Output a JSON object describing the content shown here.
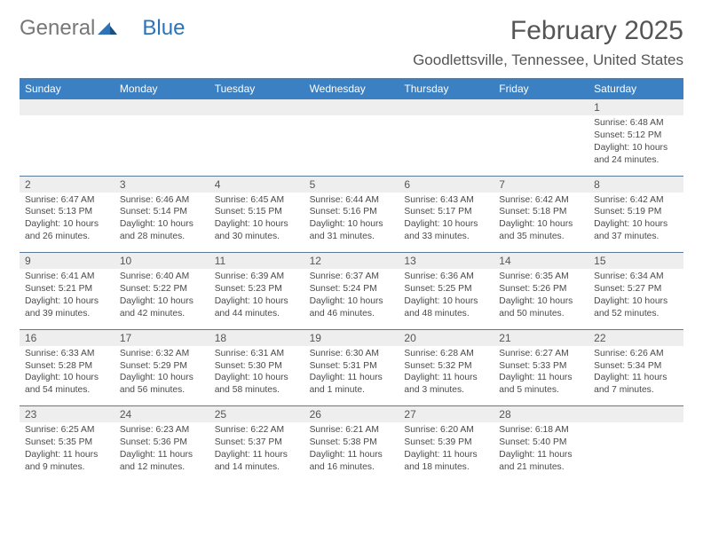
{
  "logo": {
    "general": "General",
    "blue": "Blue"
  },
  "title": "February 2025",
  "location": "Goodlettsville, Tennessee, United States",
  "colors": {
    "headerBar": "#3a80c2",
    "rule": "#5b7a99",
    "numRow": "#eeeeee"
  },
  "dayNames": [
    "Sunday",
    "Monday",
    "Tuesday",
    "Wednesday",
    "Thursday",
    "Friday",
    "Saturday"
  ],
  "weeks": [
    {
      "nums": [
        "",
        "",
        "",
        "",
        "",
        "",
        "1"
      ],
      "cells": [
        null,
        null,
        null,
        null,
        null,
        null,
        {
          "sunrise": "Sunrise: 6:48 AM",
          "sunset": "Sunset: 5:12 PM",
          "daylight": "Daylight: 10 hours and 24 minutes."
        }
      ]
    },
    {
      "nums": [
        "2",
        "3",
        "4",
        "5",
        "6",
        "7",
        "8"
      ],
      "cells": [
        {
          "sunrise": "Sunrise: 6:47 AM",
          "sunset": "Sunset: 5:13 PM",
          "daylight": "Daylight: 10 hours and 26 minutes."
        },
        {
          "sunrise": "Sunrise: 6:46 AM",
          "sunset": "Sunset: 5:14 PM",
          "daylight": "Daylight: 10 hours and 28 minutes."
        },
        {
          "sunrise": "Sunrise: 6:45 AM",
          "sunset": "Sunset: 5:15 PM",
          "daylight": "Daylight: 10 hours and 30 minutes."
        },
        {
          "sunrise": "Sunrise: 6:44 AM",
          "sunset": "Sunset: 5:16 PM",
          "daylight": "Daylight: 10 hours and 31 minutes."
        },
        {
          "sunrise": "Sunrise: 6:43 AM",
          "sunset": "Sunset: 5:17 PM",
          "daylight": "Daylight: 10 hours and 33 minutes."
        },
        {
          "sunrise": "Sunrise: 6:42 AM",
          "sunset": "Sunset: 5:18 PM",
          "daylight": "Daylight: 10 hours and 35 minutes."
        },
        {
          "sunrise": "Sunrise: 6:42 AM",
          "sunset": "Sunset: 5:19 PM",
          "daylight": "Daylight: 10 hours and 37 minutes."
        }
      ]
    },
    {
      "nums": [
        "9",
        "10",
        "11",
        "12",
        "13",
        "14",
        "15"
      ],
      "cells": [
        {
          "sunrise": "Sunrise: 6:41 AM",
          "sunset": "Sunset: 5:21 PM",
          "daylight": "Daylight: 10 hours and 39 minutes."
        },
        {
          "sunrise": "Sunrise: 6:40 AM",
          "sunset": "Sunset: 5:22 PM",
          "daylight": "Daylight: 10 hours and 42 minutes."
        },
        {
          "sunrise": "Sunrise: 6:39 AM",
          "sunset": "Sunset: 5:23 PM",
          "daylight": "Daylight: 10 hours and 44 minutes."
        },
        {
          "sunrise": "Sunrise: 6:37 AM",
          "sunset": "Sunset: 5:24 PM",
          "daylight": "Daylight: 10 hours and 46 minutes."
        },
        {
          "sunrise": "Sunrise: 6:36 AM",
          "sunset": "Sunset: 5:25 PM",
          "daylight": "Daylight: 10 hours and 48 minutes."
        },
        {
          "sunrise": "Sunrise: 6:35 AM",
          "sunset": "Sunset: 5:26 PM",
          "daylight": "Daylight: 10 hours and 50 minutes."
        },
        {
          "sunrise": "Sunrise: 6:34 AM",
          "sunset": "Sunset: 5:27 PM",
          "daylight": "Daylight: 10 hours and 52 minutes."
        }
      ]
    },
    {
      "nums": [
        "16",
        "17",
        "18",
        "19",
        "20",
        "21",
        "22"
      ],
      "cells": [
        {
          "sunrise": "Sunrise: 6:33 AM",
          "sunset": "Sunset: 5:28 PM",
          "daylight": "Daylight: 10 hours and 54 minutes."
        },
        {
          "sunrise": "Sunrise: 6:32 AM",
          "sunset": "Sunset: 5:29 PM",
          "daylight": "Daylight: 10 hours and 56 minutes."
        },
        {
          "sunrise": "Sunrise: 6:31 AM",
          "sunset": "Sunset: 5:30 PM",
          "daylight": "Daylight: 10 hours and 58 minutes."
        },
        {
          "sunrise": "Sunrise: 6:30 AM",
          "sunset": "Sunset: 5:31 PM",
          "daylight": "Daylight: 11 hours and 1 minute."
        },
        {
          "sunrise": "Sunrise: 6:28 AM",
          "sunset": "Sunset: 5:32 PM",
          "daylight": "Daylight: 11 hours and 3 minutes."
        },
        {
          "sunrise": "Sunrise: 6:27 AM",
          "sunset": "Sunset: 5:33 PM",
          "daylight": "Daylight: 11 hours and 5 minutes."
        },
        {
          "sunrise": "Sunrise: 6:26 AM",
          "sunset": "Sunset: 5:34 PM",
          "daylight": "Daylight: 11 hours and 7 minutes."
        }
      ]
    },
    {
      "nums": [
        "23",
        "24",
        "25",
        "26",
        "27",
        "28",
        ""
      ],
      "cells": [
        {
          "sunrise": "Sunrise: 6:25 AM",
          "sunset": "Sunset: 5:35 PM",
          "daylight": "Daylight: 11 hours and 9 minutes."
        },
        {
          "sunrise": "Sunrise: 6:23 AM",
          "sunset": "Sunset: 5:36 PM",
          "daylight": "Daylight: 11 hours and 12 minutes."
        },
        {
          "sunrise": "Sunrise: 6:22 AM",
          "sunset": "Sunset: 5:37 PM",
          "daylight": "Daylight: 11 hours and 14 minutes."
        },
        {
          "sunrise": "Sunrise: 6:21 AM",
          "sunset": "Sunset: 5:38 PM",
          "daylight": "Daylight: 11 hours and 16 minutes."
        },
        {
          "sunrise": "Sunrise: 6:20 AM",
          "sunset": "Sunset: 5:39 PM",
          "daylight": "Daylight: 11 hours and 18 minutes."
        },
        {
          "sunrise": "Sunrise: 6:18 AM",
          "sunset": "Sunset: 5:40 PM",
          "daylight": "Daylight: 11 hours and 21 minutes."
        },
        null
      ]
    }
  ]
}
